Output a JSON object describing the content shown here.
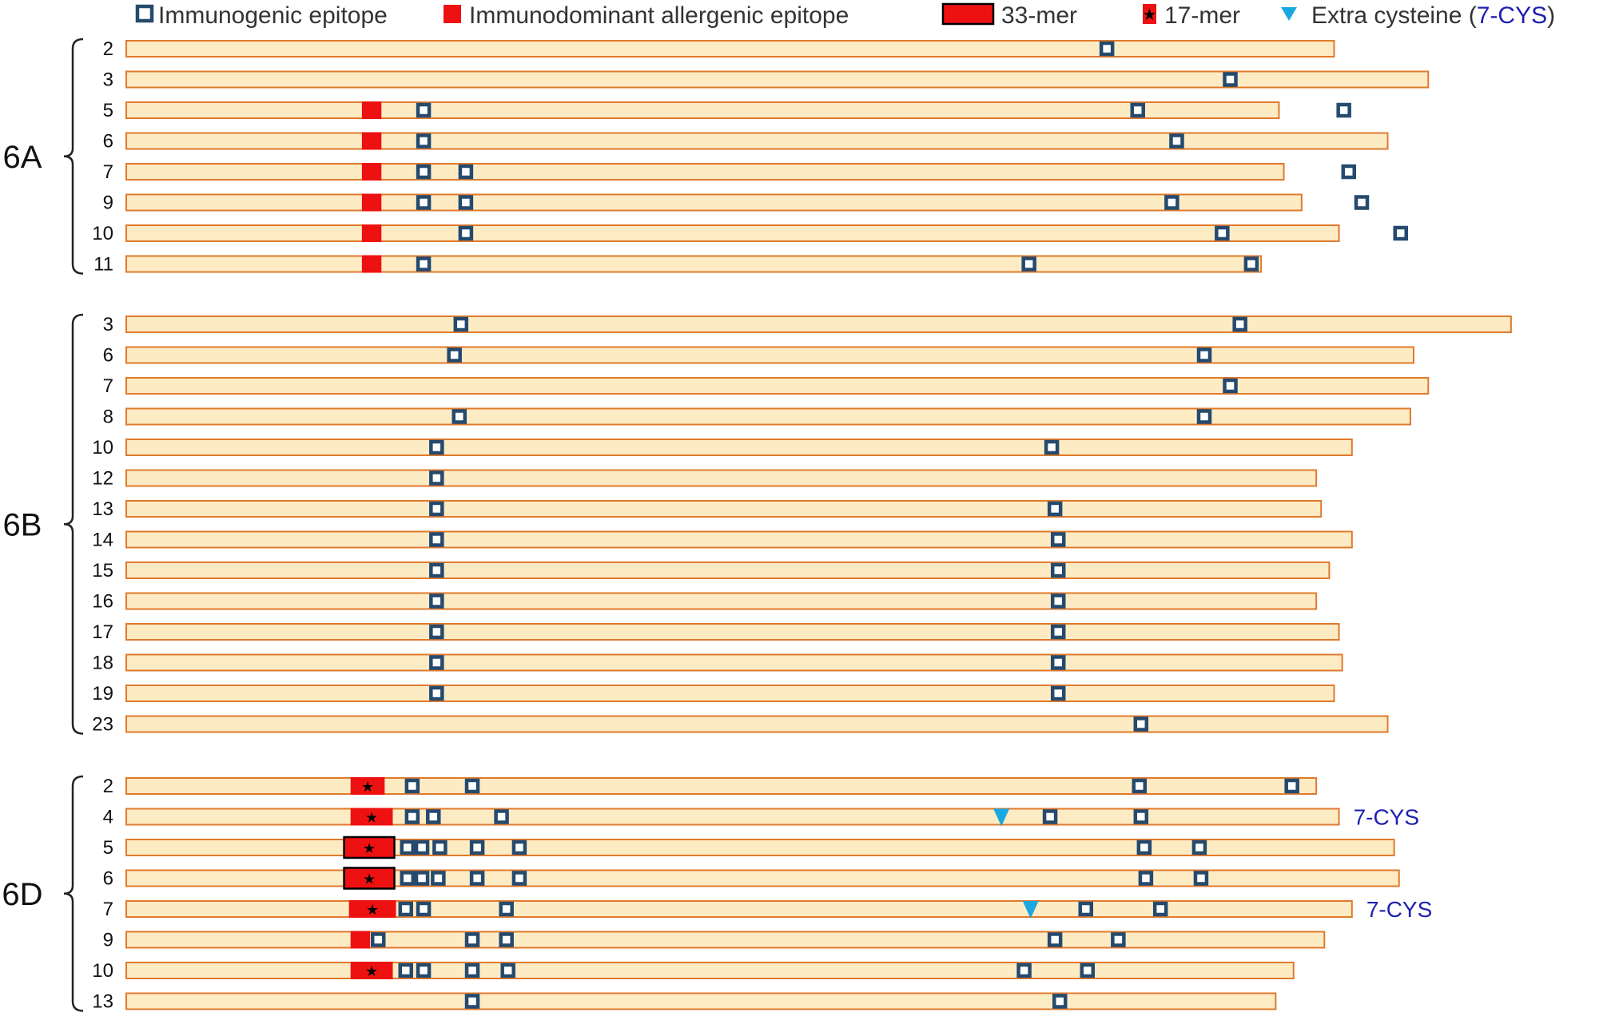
{
  "colors": {
    "bar_fill": "#fdebc4",
    "bar_stroke": "#e07a2c",
    "epitope": "#254a6e",
    "allergen": "#ee1111",
    "cysteine": "#1aa8e0",
    "cys_text": "#1f1fb0"
  },
  "legend": {
    "immunogenic": "Immunogenic epitope",
    "allergenic": "Immunodominant allergenic epitope",
    "mer33": "33-mer",
    "mer17": "17-mer",
    "cysteine_prefix": "Extra cysteine (",
    "cysteine_code": "7-CYS",
    "cysteine_suffix": ")"
  },
  "groups": [
    {
      "name": "6A",
      "rows": [
        {
          "label": "2",
          "length": 0.822,
          "epitopes": [
            0.682
          ],
          "allergen": null,
          "cysteine": [],
          "note": ""
        },
        {
          "label": "3",
          "length": 0.88,
          "epitopes": [
            0.758
          ],
          "allergen": null,
          "cysteine": [],
          "note": ""
        },
        {
          "label": "5",
          "length": 0.788,
          "epitopes": [
            0.261,
            0.701,
            0.828
          ],
          "allergen": {
            "type": "plain",
            "start": 0.223,
            "end": 0.235
          },
          "cysteine": [],
          "note": ""
        },
        {
          "label": "6",
          "length": 0.855,
          "epitopes": [
            0.261,
            0.725
          ],
          "allergen": {
            "type": "plain",
            "start": 0.223,
            "end": 0.235
          },
          "cysteine": [],
          "note": ""
        },
        {
          "label": "7",
          "length": 0.791,
          "epitopes": [
            0.261,
            0.287,
            0.831
          ],
          "allergen": {
            "type": "plain",
            "start": 0.223,
            "end": 0.235
          },
          "cysteine": [],
          "note": ""
        },
        {
          "label": "9",
          "length": 0.802,
          "epitopes": [
            0.261,
            0.287,
            0.722,
            0.839
          ],
          "allergen": {
            "type": "plain",
            "start": 0.223,
            "end": 0.235
          },
          "cysteine": [],
          "note": ""
        },
        {
          "label": "10",
          "length": 0.825,
          "epitopes": [
            0.287,
            0.753,
            0.863
          ],
          "allergen": {
            "type": "plain",
            "start": 0.223,
            "end": 0.235
          },
          "cysteine": [],
          "note": ""
        },
        {
          "label": "11",
          "length": 0.777,
          "epitopes": [
            0.261,
            0.634,
            0.771
          ],
          "allergen": {
            "type": "plain",
            "start": 0.223,
            "end": 0.235
          },
          "cysteine": [],
          "note": ""
        }
      ]
    },
    {
      "name": "6B",
      "rows": [
        {
          "label": "3",
          "length": 0.931,
          "epitopes": [
            0.284,
            0.764
          ],
          "allergen": null,
          "cysteine": [],
          "note": ""
        },
        {
          "label": "6",
          "length": 0.871,
          "epitopes": [
            0.28,
            0.742
          ],
          "allergen": null,
          "cysteine": [],
          "note": ""
        },
        {
          "label": "7",
          "length": 0.88,
          "epitopes": [
            0.758
          ],
          "allergen": null,
          "cysteine": [],
          "note": ""
        },
        {
          "label": "8",
          "length": 0.869,
          "epitopes": [
            0.283,
            0.742
          ],
          "allergen": null,
          "cysteine": [],
          "note": ""
        },
        {
          "label": "10",
          "length": 0.833,
          "epitopes": [
            0.269,
            0.648
          ],
          "allergen": null,
          "cysteine": [],
          "note": ""
        },
        {
          "label": "12",
          "length": 0.811,
          "epitopes": [
            0.269
          ],
          "allergen": null,
          "cysteine": [],
          "note": ""
        },
        {
          "label": "13",
          "length": 0.814,
          "epitopes": [
            0.269,
            0.65
          ],
          "allergen": null,
          "cysteine": [],
          "note": ""
        },
        {
          "label": "14",
          "length": 0.833,
          "epitopes": [
            0.269,
            0.652
          ],
          "allergen": null,
          "cysteine": [],
          "note": ""
        },
        {
          "label": "15",
          "length": 0.819,
          "epitopes": [
            0.269,
            0.652
          ],
          "allergen": null,
          "cysteine": [],
          "note": ""
        },
        {
          "label": "16",
          "length": 0.811,
          "epitopes": [
            0.269,
            0.652
          ],
          "allergen": null,
          "cysteine": [],
          "note": ""
        },
        {
          "label": "17",
          "length": 0.825,
          "epitopes": [
            0.269,
            0.652
          ],
          "allergen": null,
          "cysteine": [],
          "note": ""
        },
        {
          "label": "18",
          "length": 0.827,
          "epitopes": [
            0.269,
            0.652
          ],
          "allergen": null,
          "cysteine": [],
          "note": ""
        },
        {
          "label": "19",
          "length": 0.822,
          "epitopes": [
            0.269,
            0.652
          ],
          "allergen": null,
          "cysteine": [],
          "note": ""
        },
        {
          "label": "23",
          "length": 0.855,
          "epitopes": [
            0.703
          ],
          "allergen": null,
          "cysteine": [],
          "note": ""
        }
      ]
    },
    {
      "name": "6D",
      "rows": [
        {
          "label": "2",
          "length": 0.811,
          "epitopes": [
            0.254,
            0.291,
            0.702,
            0.796
          ],
          "allergen": {
            "type": "star",
            "start": 0.216,
            "end": 0.237
          },
          "cysteine": [],
          "note": ""
        },
        {
          "label": "4",
          "length": 0.825,
          "epitopes": [
            0.254,
            0.267,
            0.309,
            0.647,
            0.703
          ],
          "allergen": {
            "type": "star",
            "start": 0.216,
            "end": 0.242
          },
          "cysteine": [
            0.617
          ],
          "note": "7-CYS"
        },
        {
          "label": "5",
          "length": 0.859,
          "epitopes": [
            0.251,
            0.26,
            0.271,
            0.294,
            0.32,
            0.705,
            0.739
          ],
          "allergen": {
            "type": "mer33",
            "start": 0.212,
            "end": 0.243
          },
          "cysteine": [],
          "note": ""
        },
        {
          "label": "6",
          "length": 0.862,
          "epitopes": [
            0.251,
            0.26,
            0.27,
            0.294,
            0.32,
            0.706,
            0.74
          ],
          "allergen": {
            "type": "mer33",
            "start": 0.212,
            "end": 0.243
          },
          "cysteine": [],
          "note": ""
        },
        {
          "label": "7",
          "length": 0.833,
          "epitopes": [
            0.25,
            0.261,
            0.312,
            0.669,
            0.715
          ],
          "allergen": {
            "type": "star",
            "start": 0.215,
            "end": 0.244
          },
          "cysteine": [
            0.635
          ],
          "note": "7-CYS"
        },
        {
          "label": "9",
          "length": 0.816,
          "epitopes": [
            0.233,
            0.291,
            0.312,
            0.65,
            0.689
          ],
          "allergen": {
            "type": "plain",
            "start": 0.216,
            "end": 0.228
          },
          "cysteine": [],
          "note": ""
        },
        {
          "label": "10",
          "length": 0.797,
          "epitopes": [
            0.25,
            0.261,
            0.291,
            0.313,
            0.631,
            0.67
          ],
          "allergen": {
            "type": "star",
            "start": 0.216,
            "end": 0.242
          },
          "cysteine": [],
          "note": ""
        },
        {
          "label": "13",
          "length": 0.786,
          "epitopes": [
            0.291,
            0.653
          ],
          "allergen": null,
          "cysteine": [],
          "note": ""
        }
      ]
    }
  ]
}
